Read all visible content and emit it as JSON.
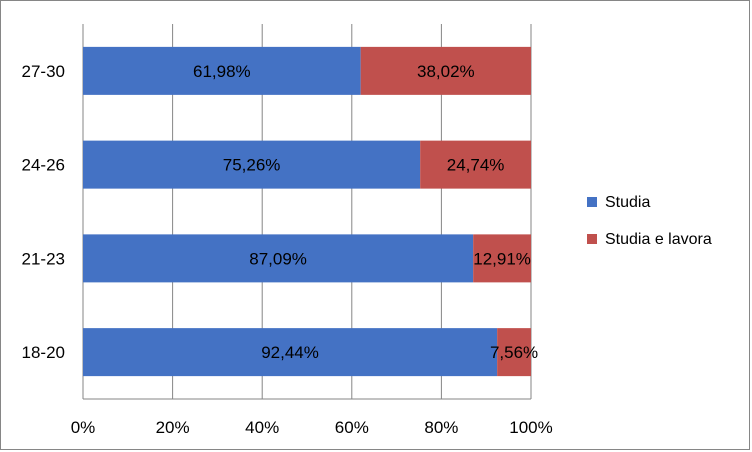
{
  "chart_data": {
    "type": "bar",
    "orientation": "horizontal",
    "stacked": "percent",
    "categories": [
      "27-30",
      "24-26",
      "21-23",
      "18-20"
    ],
    "series": [
      {
        "name": "Studia",
        "values": [
          61.98,
          75.26,
          87.09,
          92.44
        ],
        "labels": [
          "61,98%",
          "75,26%",
          "87,09%",
          "92,44%"
        ]
      },
      {
        "name": "Studia e lavora",
        "values": [
          38.02,
          24.74,
          12.91,
          7.56
        ],
        "labels": [
          "38,02%",
          "24,74%",
          "12,91%",
          "7,56%"
        ]
      }
    ],
    "x_ticks": [
      "0%",
      "20%",
      "40%",
      "60%",
      "80%",
      "100%"
    ],
    "xlim": [
      0,
      100
    ],
    "grid": true,
    "legend_position": "right",
    "colors": [
      "#4472c4",
      "#c0504d"
    ]
  }
}
